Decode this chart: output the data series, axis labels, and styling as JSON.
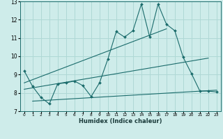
{
  "xlabel": "Humidex (Indice chaleur)",
  "bg_color": "#ceecea",
  "grid_color": "#afd8d5",
  "line_color": "#1a6b6b",
  "xlim": [
    -0.5,
    23.5
  ],
  "ylim": [
    7,
    13
  ],
  "xticks": [
    0,
    1,
    2,
    3,
    4,
    5,
    6,
    7,
    8,
    9,
    10,
    11,
    12,
    13,
    14,
    15,
    16,
    17,
    18,
    19,
    20,
    21,
    22,
    23
  ],
  "yticks": [
    7,
    8,
    9,
    10,
    11,
    12,
    13
  ],
  "main_x": [
    0,
    1,
    2,
    3,
    4,
    5,
    6,
    7,
    8,
    9,
    10,
    11,
    12,
    13,
    14,
    15,
    16,
    17,
    18,
    19,
    20,
    21,
    22,
    23
  ],
  "main_y": [
    9.2,
    8.35,
    7.75,
    7.4,
    8.5,
    8.55,
    8.65,
    8.4,
    7.8,
    8.55,
    9.85,
    11.35,
    11.05,
    11.4,
    12.85,
    11.05,
    12.85,
    11.75,
    11.4,
    9.95,
    9.05,
    8.1,
    8.1,
    8.05
  ],
  "trend1_x": [
    0,
    17
  ],
  "trend1_y": [
    8.55,
    11.5
  ],
  "trend2_x": [
    0,
    22
  ],
  "trend2_y": [
    8.2,
    9.9
  ],
  "trend3_x": [
    1,
    23
  ],
  "trend3_y": [
    7.55,
    8.15
  ]
}
